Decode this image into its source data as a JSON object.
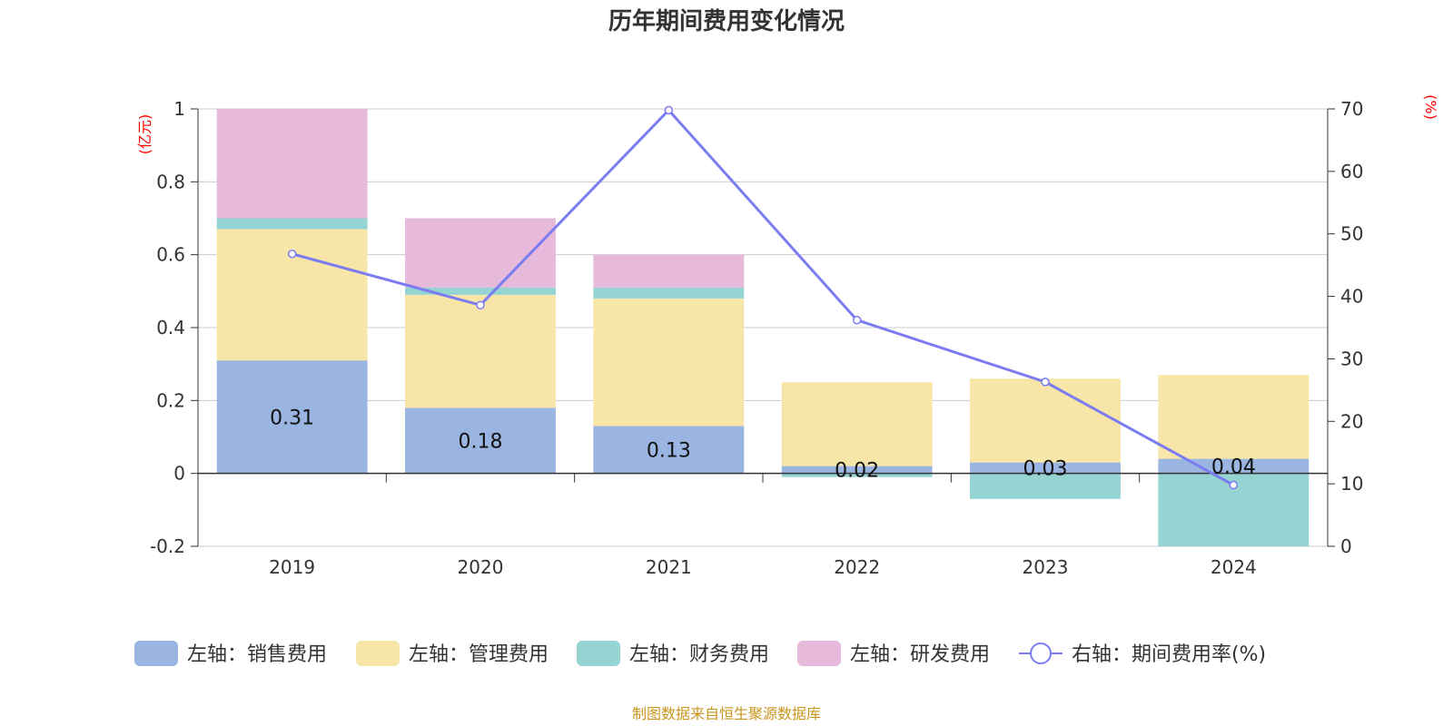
{
  "chart_data": {
    "type": "bar",
    "title": "历年期间费用变化情况",
    "categories": [
      "2019",
      "2020",
      "2021",
      "2022",
      "2023",
      "2024"
    ],
    "left_axis": {
      "unit": "(亿元)",
      "ylim": [
        -0.2,
        1
      ],
      "ticks": [
        "-0.2",
        "0",
        "0.2",
        "0.4",
        "0.6",
        "0.8",
        "1"
      ]
    },
    "right_axis": {
      "unit": "(%)",
      "ylim": [
        0,
        70
      ],
      "ticks": [
        "0",
        "10",
        "20",
        "30",
        "40",
        "50",
        "60",
        "70"
      ]
    },
    "stacked": true,
    "series": [
      {
        "name": "左轴：销售费用",
        "type": "bar",
        "axis": "left",
        "color": "#9ab5e1",
        "values": [
          0.31,
          0.18,
          0.13,
          0.02,
          0.03,
          0.04
        ],
        "labels": [
          "0.31",
          "0.18",
          "0.13",
          "0.02",
          "0.03",
          "0.04"
        ]
      },
      {
        "name": "左轴：管理费用",
        "type": "bar",
        "axis": "left",
        "color": "#f7e6a7",
        "values": [
          0.36,
          0.31,
          0.35,
          0.23,
          0.23,
          0.23
        ]
      },
      {
        "name": "左轴：财务费用",
        "type": "bar",
        "axis": "left",
        "color": "#96d3d3",
        "values": [
          0.03,
          0.02,
          0.03,
          -0.01,
          -0.07,
          -0.2
        ]
      },
      {
        "name": "左轴：研发费用",
        "type": "bar",
        "axis": "left",
        "color": "#e7b9da",
        "values": [
          0.3,
          0.19,
          0.09,
          0,
          0,
          0
        ]
      },
      {
        "name": "右轴：期间费用率(%)",
        "type": "line",
        "axis": "right",
        "color": "#7b7cf0",
        "values": [
          46.8,
          38.6,
          69.8,
          36.2,
          26.3,
          9.8
        ]
      }
    ],
    "grid": true,
    "legend_position": "bottom"
  },
  "source_text": "制图数据来自恒生聚源数据库"
}
